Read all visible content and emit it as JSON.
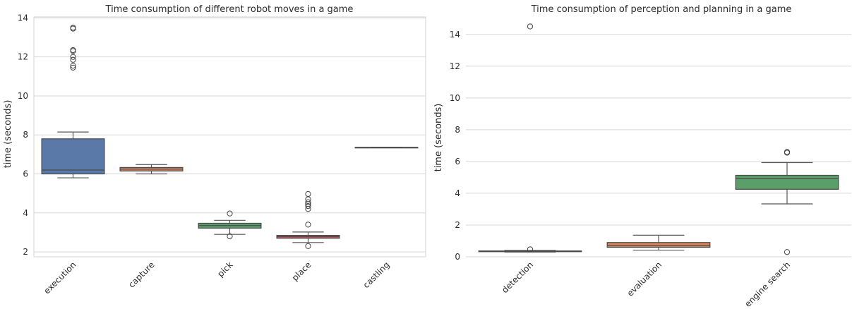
{
  "chart_data": [
    {
      "type": "box",
      "title": "Time consumption of different robot moves in a game",
      "xlabel": "",
      "ylabel": "time (seconds)",
      "ylim": [
        1.75,
        14.05
      ],
      "yticks": [
        2,
        4,
        6,
        8,
        10,
        12,
        14
      ],
      "categories": [
        "execution",
        "capture",
        "pick",
        "place",
        "castling"
      ],
      "colors": [
        "#5a78a8",
        "#d5845b",
        "#5a9e69",
        "#c0565a",
        "#8172b2"
      ],
      "grid": true,
      "series": [
        {
          "min": 5.8,
          "q1": 6.0,
          "median": 6.2,
          "q3": 7.8,
          "max": 8.15,
          "outliers": [
            11.45,
            11.55,
            11.85,
            12.0,
            12.3,
            12.35,
            13.45,
            13.5
          ]
        },
        {
          "min": 6.0,
          "q1": 6.15,
          "median": 6.25,
          "q3": 6.33,
          "max": 6.48,
          "outliers": []
        },
        {
          "min": 2.9,
          "q1": 3.22,
          "median": 3.35,
          "q3": 3.47,
          "max": 3.62,
          "outliers": [
            2.8,
            3.97
          ]
        },
        {
          "min": 2.48,
          "q1": 2.7,
          "median": 2.78,
          "q3": 2.85,
          "max": 3.02,
          "outliers": [
            2.3,
            3.4,
            4.2,
            4.35,
            4.45,
            4.55,
            4.7,
            4.97
          ]
        },
        {
          "min": 7.36,
          "q1": 7.36,
          "median": 7.36,
          "q3": 7.36,
          "max": 7.36,
          "outliers": []
        }
      ]
    },
    {
      "type": "box",
      "title": "Time consumption of perception and planning in a game",
      "xlabel": "",
      "ylabel": "time (seconds)",
      "ylim": [
        0,
        15.1
      ],
      "yticks": [
        0,
        2,
        4,
        6,
        8,
        10,
        12,
        14
      ],
      "categories": [
        "detection",
        "evaluation",
        "engine search"
      ],
      "colors": [
        "#5a78a8",
        "#d5845b",
        "#5a9e69"
      ],
      "grid": true,
      "series": [
        {
          "min": 0.3,
          "q1": 0.32,
          "median": 0.35,
          "q3": 0.37,
          "max": 0.4,
          "outliers": [
            0.47,
            14.5
          ]
        },
        {
          "min": 0.42,
          "q1": 0.6,
          "median": 0.7,
          "q3": 0.9,
          "max": 1.36,
          "outliers": []
        },
        {
          "min": 3.33,
          "q1": 4.25,
          "median": 4.93,
          "q3": 5.13,
          "max": 5.93,
          "outliers": [
            0.3,
            6.55,
            6.6
          ]
        }
      ]
    }
  ]
}
